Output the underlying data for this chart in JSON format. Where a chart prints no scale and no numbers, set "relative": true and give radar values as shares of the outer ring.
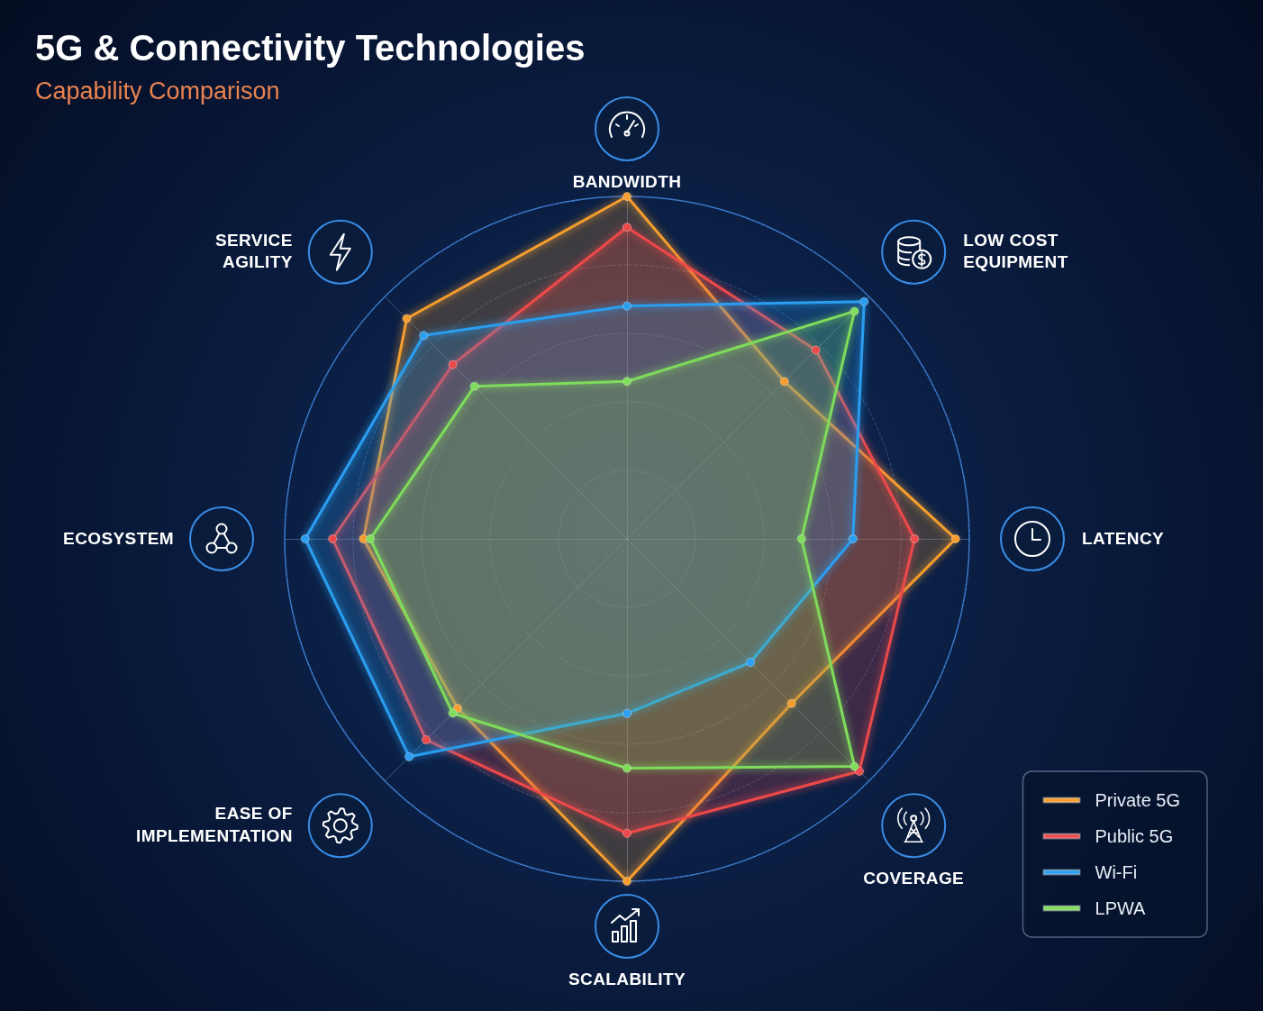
{
  "chart_data": {
    "type": "radar",
    "title": "5G & Connectivity Technologies",
    "subtitle": "Capability Comparison",
    "categories": [
      "BANDWIDTH",
      "LOW COST EQUIPMENT",
      "LATENCY",
      "COVERAGE",
      "SCALABILITY",
      "EASE OF IMPLEMENTATION",
      "ECOSYSTEM",
      "SERVICE AGILITY"
    ],
    "relative": true,
    "series": [
      {
        "name": "Private 5G",
        "color": "#f59e2e",
        "values": [
          1.0,
          0.65,
          0.96,
          0.68,
          1.0,
          0.7,
          0.77,
          0.91
        ]
      },
      {
        "name": "Public 5G",
        "color": "#ec4a4a",
        "values": [
          0.91,
          0.78,
          0.84,
          0.96,
          0.86,
          0.83,
          0.86,
          0.72
        ]
      },
      {
        "name": "Wi-Fi",
        "color": "#2b9ef0",
        "values": [
          0.68,
          0.98,
          0.66,
          0.51,
          0.51,
          0.9,
          0.94,
          0.84
        ]
      },
      {
        "name": "LPWA",
        "color": "#7fdc5c",
        "values": [
          0.46,
          0.94,
          0.51,
          0.94,
          0.67,
          0.72,
          0.75,
          0.63
        ]
      }
    ],
    "legend": "bottom right",
    "grid": true,
    "marker": "circle",
    "line_style": "solid"
  }
}
